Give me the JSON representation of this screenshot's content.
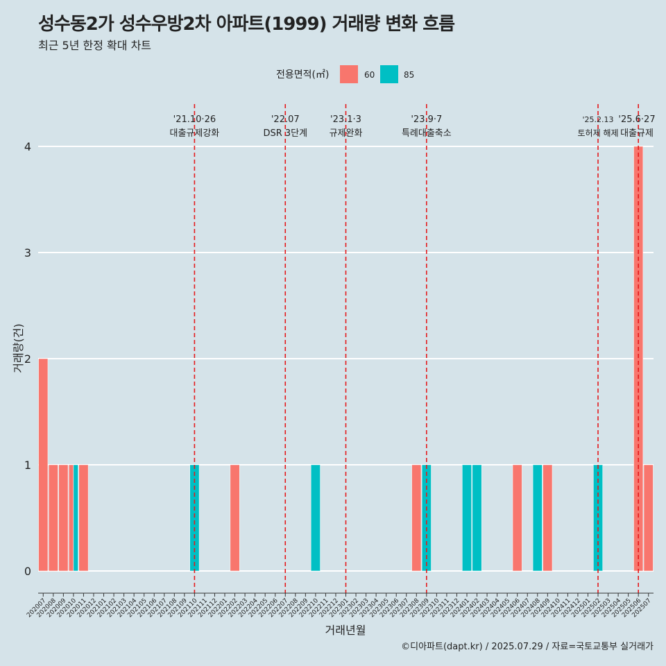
{
  "header": {
    "title": "성수동2가 성수우방2차 아파트(1999) 거래량 변화 흐름",
    "subtitle": "최근 5년 한정 확대 차트"
  },
  "caption": "©디아파트(dapt.kr) / 2025.07.29 / 자료=국토교통부 실거래가",
  "colors": {
    "background": "#d5e3e9",
    "s60": "#f8766d",
    "s85": "#00bfc4",
    "event_line": "#e41a1c",
    "grid": "#ffffff"
  },
  "chart_data": {
    "type": "bar",
    "xlabel": "거래년월",
    "ylabel": "거래량(건)",
    "ylim": [
      0,
      4
    ],
    "yticks": [
      0,
      1,
      2,
      3,
      4
    ],
    "legend_title": "전용면적(㎡)",
    "legend_position": "top",
    "categories": [
      "202007",
      "202008",
      "202009",
      "202010",
      "202011",
      "202012",
      "202101",
      "202102",
      "202103",
      "202104",
      "202105",
      "202106",
      "202107",
      "202108",
      "202109",
      "202110",
      "202111",
      "202112",
      "202201",
      "202202",
      "202203",
      "202204",
      "202205",
      "202206",
      "202207",
      "202208",
      "202209",
      "202210",
      "202211",
      "202212",
      "202301",
      "202302",
      "202303",
      "202304",
      "202305",
      "202306",
      "202307",
      "202308",
      "202309",
      "202310",
      "202311",
      "202312",
      "202401",
      "202402",
      "202403",
      "202404",
      "202405",
      "202406",
      "202407",
      "202408",
      "202409",
      "202410",
      "202411",
      "202412",
      "202501",
      "202502",
      "202503",
      "202504",
      "202505",
      "202506",
      "202507"
    ],
    "series": [
      {
        "name": "60",
        "values": [
          2,
          1,
          1,
          1,
          1,
          0,
          0,
          0,
          0,
          0,
          0,
          0,
          0,
          0,
          0,
          0,
          0,
          0,
          0,
          1,
          0,
          0,
          0,
          0,
          0,
          0,
          0,
          0,
          0,
          0,
          0,
          0,
          0,
          0,
          0,
          0,
          0,
          1,
          0,
          0,
          0,
          0,
          0,
          0,
          0,
          0,
          0,
          1,
          0,
          0,
          1,
          0,
          0,
          0,
          0,
          0,
          0,
          0,
          0,
          4,
          1
        ]
      },
      {
        "name": "85",
        "values": [
          0,
          0,
          0,
          1,
          0,
          0,
          0,
          0,
          0,
          0,
          0,
          0,
          0,
          0,
          0,
          1,
          0,
          0,
          0,
          0,
          0,
          0,
          0,
          0,
          0,
          0,
          0,
          1,
          0,
          0,
          0,
          0,
          0,
          0,
          0,
          0,
          0,
          0,
          1,
          0,
          0,
          0,
          1,
          1,
          0,
          0,
          0,
          0,
          0,
          1,
          0,
          0,
          0,
          0,
          0,
          1,
          0,
          0,
          0,
          0,
          0
        ]
      }
    ],
    "events": [
      {
        "at": "202110",
        "date": "'21.10·26",
        "label": "대출규제강화"
      },
      {
        "at": "202207",
        "date": "'22.07",
        "label": "DSR 3단계"
      },
      {
        "at": "202301",
        "date": "'23.1·3",
        "label": "규제완화"
      },
      {
        "at": "202309",
        "date": "'23.9·7",
        "label": "특례대출축소"
      },
      {
        "at": "202502",
        "date": "'25.2.13",
        "label": "토허제 해제"
      },
      {
        "at": "202506",
        "date": "'25.6·27",
        "label": "대출규제"
      }
    ]
  }
}
